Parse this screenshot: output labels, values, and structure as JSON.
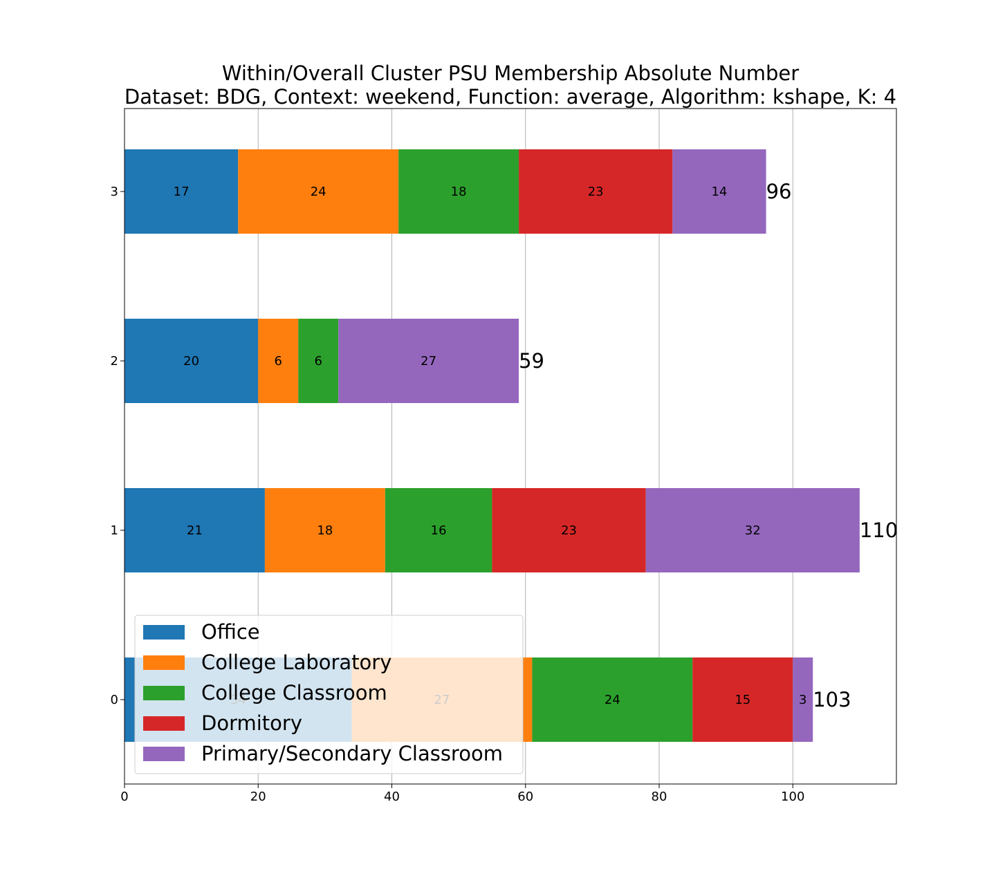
{
  "chart_data": {
    "type": "bar",
    "orientation": "horizontal",
    "stacked": true,
    "title": "Within/Overall Cluster PSU Membership Absolute Number",
    "subtitle": "Dataset: BDG, Context: weekend, Function: average, Algorithm: kshape, K: 4",
    "xlabel": "",
    "ylabel": "",
    "xlim": [
      0,
      115.5
    ],
    "x_ticks": [
      0,
      20,
      40,
      60,
      80,
      100
    ],
    "categories": [
      "0",
      "1",
      "2",
      "3"
    ],
    "series": [
      {
        "name": "Office",
        "color": "#1f77b4",
        "values": [
          34,
          21,
          20,
          17
        ]
      },
      {
        "name": "College Laboratory",
        "color": "#ff7f0e",
        "values": [
          27,
          18,
          6,
          24
        ]
      },
      {
        "name": "College Classroom",
        "color": "#2ca02c",
        "values": [
          24,
          16,
          6,
          18
        ]
      },
      {
        "name": "Dormitory",
        "color": "#d62728",
        "values": [
          15,
          23,
          0,
          23
        ]
      },
      {
        "name": "Primary/Secondary Classroom",
        "color": "#9467bd",
        "values": [
          3,
          32,
          27,
          14
        ]
      }
    ],
    "totals": [
      103,
      110,
      59,
      96
    ],
    "grid": "x",
    "legend_position": "lower-left"
  }
}
